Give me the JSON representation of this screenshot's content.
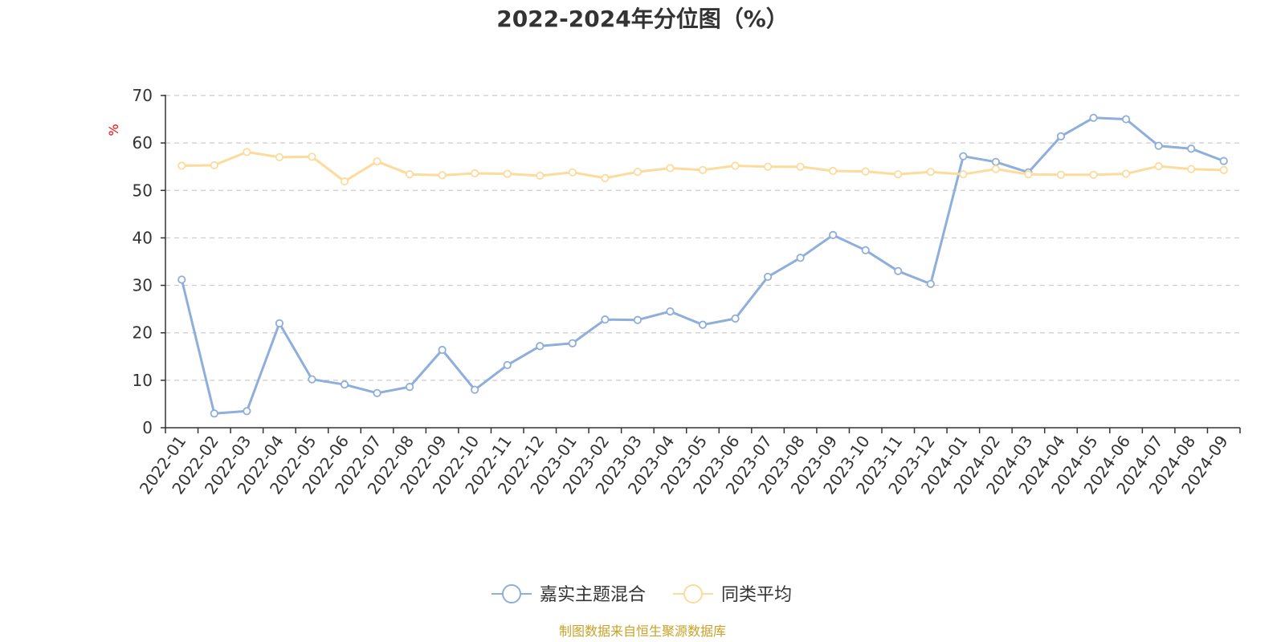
{
  "chart_data": {
    "type": "line",
    "title": "2022-2024年分位图（%）",
    "ylabel": "%",
    "ylim": [
      0,
      70
    ],
    "yticks": [
      0,
      10,
      20,
      30,
      40,
      50,
      60,
      70
    ],
    "grid": true,
    "legend_position": "bottom",
    "x": [
      "2022-01",
      "2022-02",
      "2022-03",
      "2022-04",
      "2022-05",
      "2022-06",
      "2022-07",
      "2022-08",
      "2022-09",
      "2022-10",
      "2022-11",
      "2022-12",
      "2023-01",
      "2023-02",
      "2023-03",
      "2023-04",
      "2023-05",
      "2023-06",
      "2023-07",
      "2023-08",
      "2023-09",
      "2023-10",
      "2023-11",
      "2023-12",
      "2024-01",
      "2024-02",
      "2024-03",
      "2024-04",
      "2024-05",
      "2024-06",
      "2024-07",
      "2024-08",
      "2024-09"
    ],
    "series": [
      {
        "name": "嘉实主题混合",
        "color": "#8eaedb",
        "values": [
          31.2,
          3.0,
          3.5,
          22.0,
          10.2,
          9.1,
          7.3,
          8.6,
          16.4,
          8.0,
          13.2,
          17.2,
          17.8,
          22.8,
          22.7,
          24.5,
          21.7,
          23.0,
          31.8,
          35.8,
          40.6,
          37.4,
          33.0,
          30.3,
          57.2,
          56.0,
          53.8,
          61.4,
          65.3,
          65.0,
          59.4,
          58.8,
          56.2
        ]
      },
      {
        "name": "同类平均",
        "color": "#fcdb9c",
        "values": [
          55.2,
          55.3,
          58.1,
          57.0,
          57.1,
          51.9,
          56.1,
          53.4,
          53.2,
          53.6,
          53.5,
          53.1,
          53.8,
          52.6,
          53.9,
          54.7,
          54.3,
          55.2,
          55.0,
          55.0,
          54.1,
          54.0,
          53.4,
          53.9,
          53.4,
          54.5,
          53.4,
          53.3,
          53.3,
          53.5,
          55.1,
          54.5,
          54.3
        ]
      }
    ]
  },
  "source_text": "制图数据来自恒生聚源数据库",
  "colors": {
    "source_text": "#c9a227",
    "ylabel": "#ff0000",
    "grid": "#cccccc",
    "axis": "#333333"
  }
}
